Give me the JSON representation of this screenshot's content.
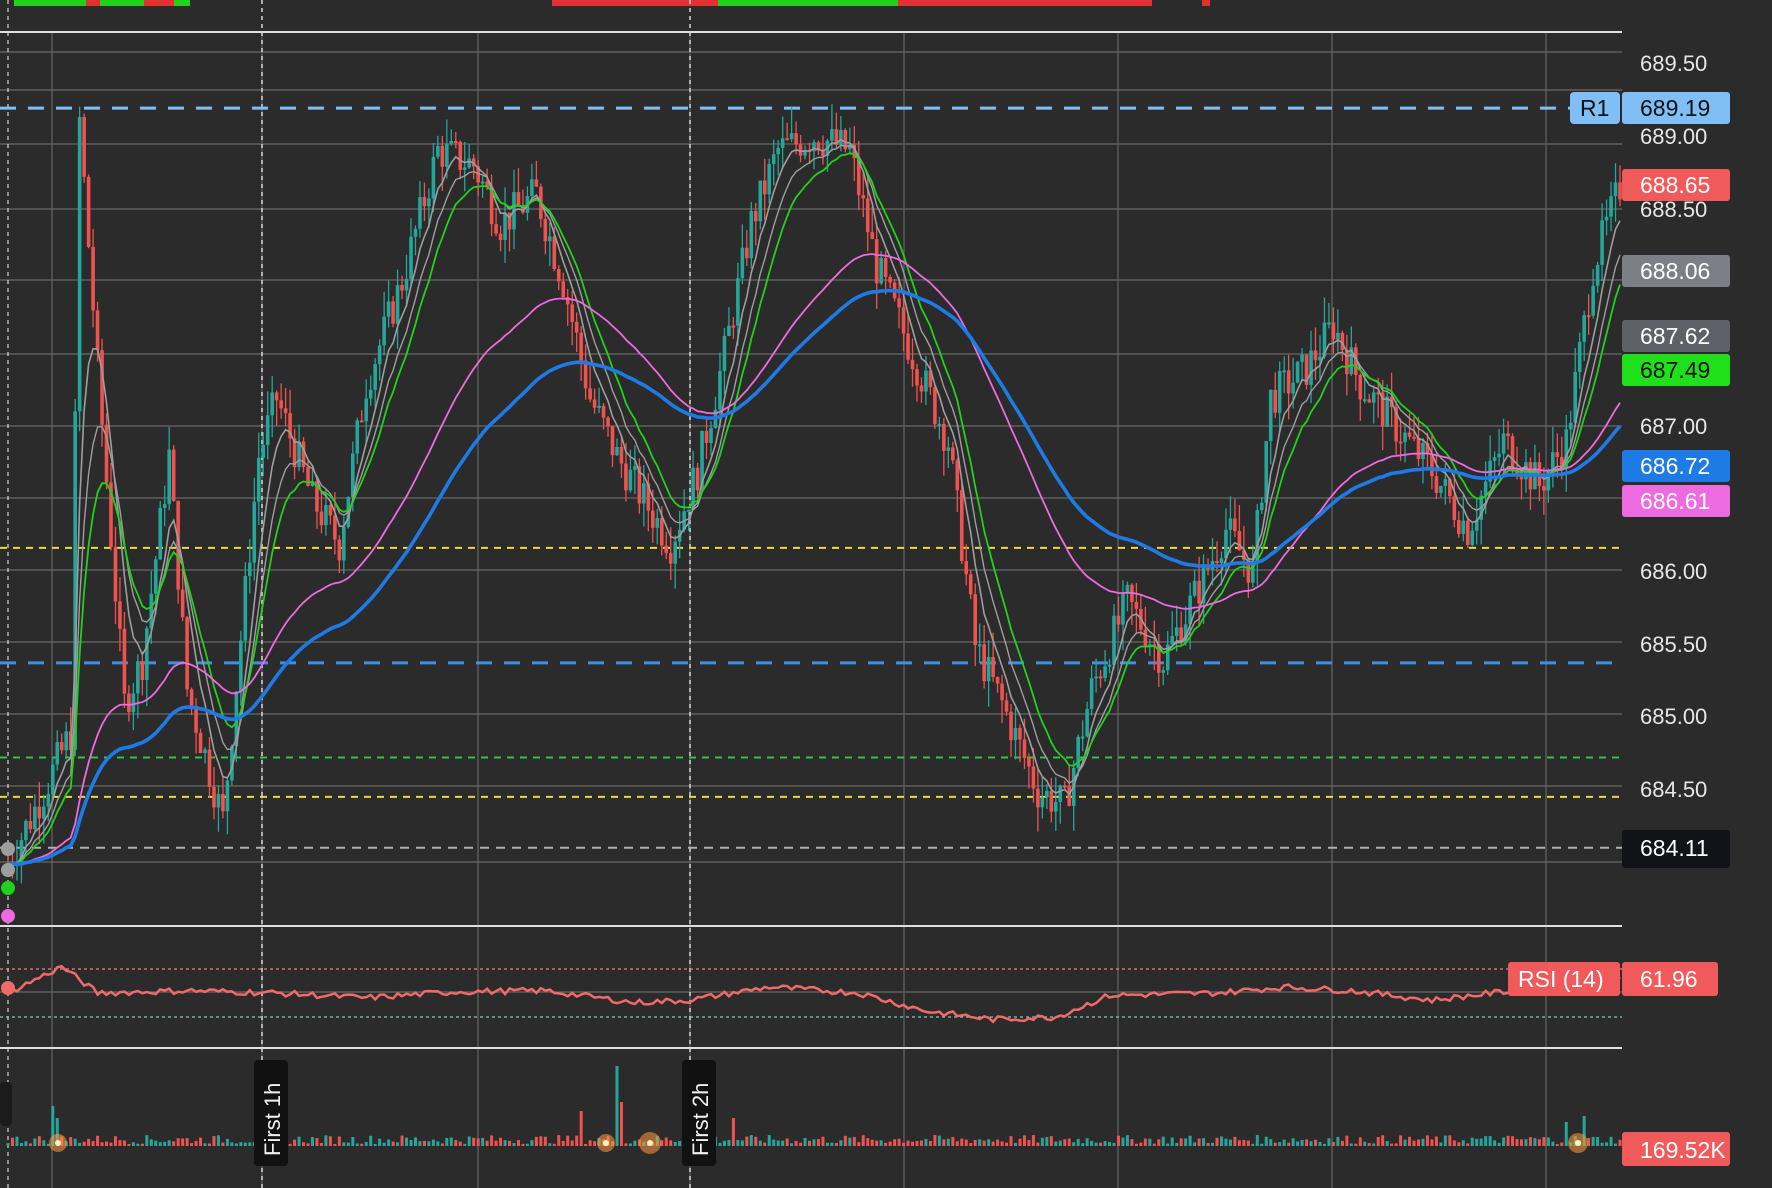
{
  "colors": {
    "background": "#2b2b2b",
    "grid": "#6b6b6b",
    "up": "#26a69a",
    "down": "#ef5350",
    "ema_fast": "#9e9e9e",
    "ema_green": "#22d11c",
    "ema_blue": "#1e7be6",
    "ema_pink": "#ee6ae0",
    "red_ma": "#e83030",
    "rsi": "#f06a6a",
    "r1": "#7fbff5",
    "yellow_level": "#f0d83a",
    "green_level": "#33c24a",
    "blue_level": "#3f8fe6",
    "gray_level": "#b0b0b0"
  },
  "price_axis": {
    "labels": [
      "689.50",
      "689.00",
      "688.50",
      "687.00",
      "686.00",
      "685.50",
      "685.00",
      "684.50"
    ]
  },
  "price_badges": {
    "r1_tag": "R1",
    "r1_value": "689.19",
    "last_price": "688.65",
    "gray_ma_1": "688.06",
    "gray_ma_2": "687.62",
    "green_ma": "687.49",
    "blue_ma": "686.72",
    "pink_ma": "686.61",
    "level_dark": "684.11"
  },
  "rsi": {
    "label": "RSI (14)",
    "value": "61.96"
  },
  "volume": {
    "value": "169.52K"
  },
  "session_markers": [
    "First 1h",
    "First 2h"
  ],
  "chart_data": {
    "type": "candlestick",
    "title": "",
    "xlabel": "",
    "ylabel": "",
    "ylim": [
      683.6,
      689.8
    ],
    "grid": true,
    "levels": {
      "r1": 689.19,
      "blue_dashed": 685.38,
      "yellow_upper": 686.17,
      "yellow_lower": 684.46,
      "green_dashed": 684.73,
      "gray_dashed": 684.11
    },
    "price_path": [
      [
        0,
        684.0
      ],
      [
        8,
        684.5
      ],
      [
        14,
        684.9
      ],
      [
        16,
        689.1
      ],
      [
        20,
        687.4
      ],
      [
        26,
        685.1
      ],
      [
        30,
        685.4
      ],
      [
        36,
        686.8
      ],
      [
        40,
        685.2
      ],
      [
        48,
        684.3
      ],
      [
        56,
        686.8
      ],
      [
        60,
        687.2
      ],
      [
        68,
        686.5
      ],
      [
        74,
        686.2
      ],
      [
        80,
        687.3
      ],
      [
        88,
        688.0
      ],
      [
        96,
        688.9
      ],
      [
        104,
        688.8
      ],
      [
        110,
        688.4
      ],
      [
        118,
        688.6
      ],
      [
        124,
        688.0
      ],
      [
        130,
        687.2
      ],
      [
        136,
        686.8
      ],
      [
        148,
        686.2
      ],
      [
        154,
        686.7
      ],
      [
        160,
        687.5
      ],
      [
        166,
        688.4
      ],
      [
        172,
        688.9
      ],
      [
        180,
        689.0
      ],
      [
        188,
        688.9
      ],
      [
        194,
        688.1
      ],
      [
        202,
        687.5
      ],
      [
        210,
        686.9
      ],
      [
        216,
        685.5
      ],
      [
        222,
        685.1
      ],
      [
        230,
        684.5
      ],
      [
        236,
        684.4
      ],
      [
        242,
        685.2
      ],
      [
        250,
        685.8
      ],
      [
        258,
        685.4
      ],
      [
        266,
        685.9
      ],
      [
        272,
        686.3
      ],
      [
        278,
        686.0
      ],
      [
        282,
        687.2
      ],
      [
        290,
        687.4
      ],
      [
        296,
        687.7
      ],
      [
        302,
        687.3
      ],
      [
        310,
        687.0
      ],
      [
        318,
        686.7
      ],
      [
        326,
        686.3
      ],
      [
        334,
        686.9
      ],
      [
        342,
        686.6
      ],
      [
        348,
        686.9
      ],
      [
        354,
        688.1
      ],
      [
        360,
        688.65
      ]
    ],
    "rsi_path": [
      [
        0,
        50
      ],
      [
        12,
        72
      ],
      [
        20,
        50
      ],
      [
        40,
        52
      ],
      [
        60,
        50
      ],
      [
        80,
        46
      ],
      [
        100,
        51
      ],
      [
        120,
        52
      ],
      [
        140,
        42
      ],
      [
        152,
        44
      ],
      [
        170,
        55
      ],
      [
        190,
        50
      ],
      [
        205,
        35
      ],
      [
        220,
        28
      ],
      [
        234,
        30
      ],
      [
        246,
        48
      ],
      [
        270,
        50
      ],
      [
        285,
        55
      ],
      [
        300,
        52
      ],
      [
        318,
        44
      ],
      [
        336,
        52
      ],
      [
        360,
        61.96
      ]
    ]
  }
}
